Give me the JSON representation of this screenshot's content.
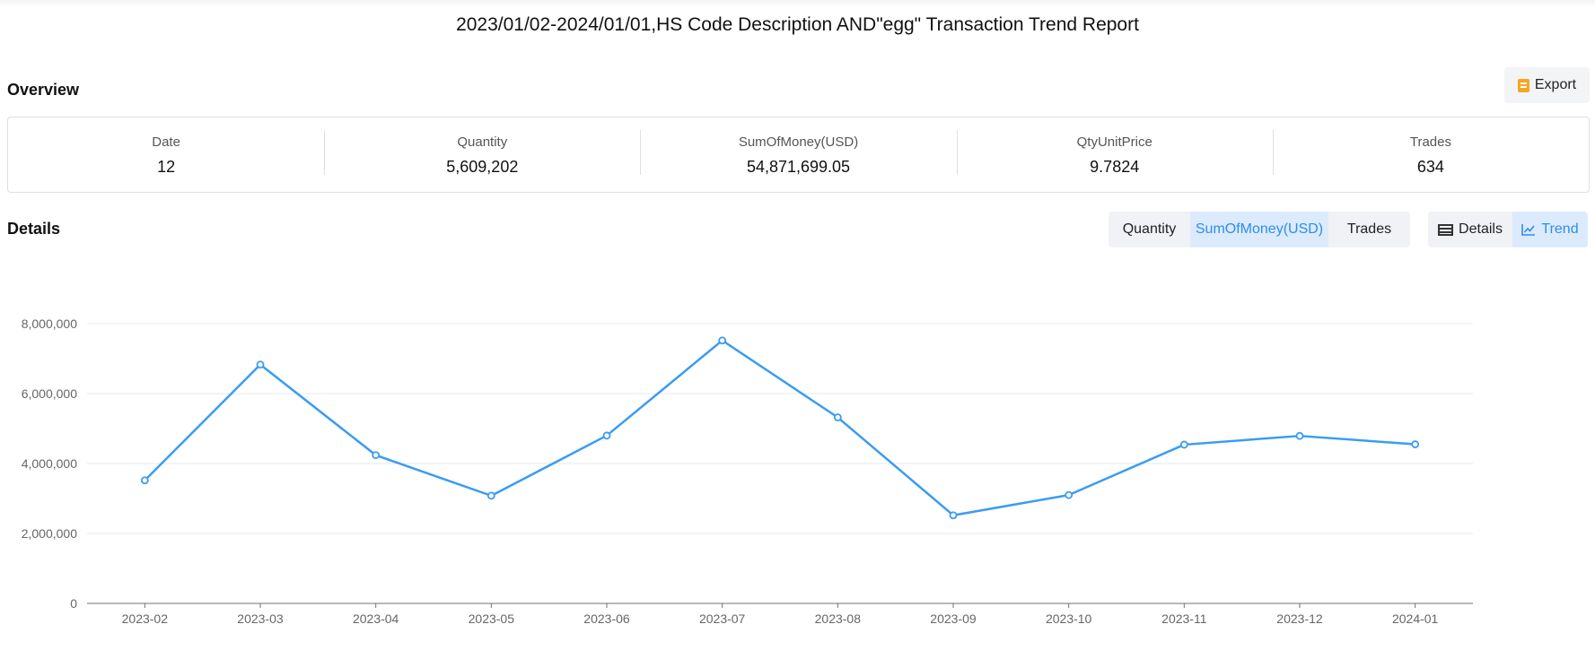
{
  "report_title": "2023/01/02-2024/01/01,HS Code Description AND\"egg\" Transaction Trend Report",
  "overview": {
    "title": "Overview",
    "export_label": "Export",
    "stats": [
      {
        "label": "Date",
        "value": "12"
      },
      {
        "label": "Quantity",
        "value": "5,609,202"
      },
      {
        "label": "SumOfMoney(USD)",
        "value": "54,871,699.05"
      },
      {
        "label": "QtyUnitPrice",
        "value": "9.7824"
      },
      {
        "label": "Trades",
        "value": "634"
      }
    ]
  },
  "details": {
    "title": "Details",
    "metric_tabs": [
      {
        "label": "Quantity",
        "active": false
      },
      {
        "label": "SumOfMoney(USD)",
        "active": true
      },
      {
        "label": "Trades",
        "active": false
      }
    ],
    "view_tabs": [
      {
        "label": "Details",
        "icon": "table-icon",
        "active": false
      },
      {
        "label": "Trend",
        "icon": "line-chart-icon",
        "active": true
      }
    ]
  },
  "colors": {
    "line": "#3a9cf2",
    "active_tab_text": "#2d8cf0",
    "grid": "#e6e8ee"
  },
  "chart_data": {
    "type": "line",
    "categories": [
      "2023-02",
      "2023-03",
      "2023-04",
      "2023-05",
      "2023-06",
      "2023-07",
      "2023-08",
      "2023-09",
      "2023-10",
      "2023-11",
      "2023-12",
      "2024-01"
    ],
    "series": [
      {
        "values": [
          3520000,
          6830000,
          4240000,
          3080000,
          4800000,
          7520000,
          5320000,
          2520000,
          3100000,
          4540000,
          4790000,
          4550000
        ]
      }
    ],
    "ylim": [
      0,
      8000000
    ],
    "yticks": [
      "0",
      "2,000,000",
      "4,000,000",
      "6,000,000",
      "8,000,000"
    ],
    "ytick_values": [
      0,
      2000000,
      4000000,
      6000000,
      8000000
    ],
    "grid": true,
    "legend": "none"
  }
}
